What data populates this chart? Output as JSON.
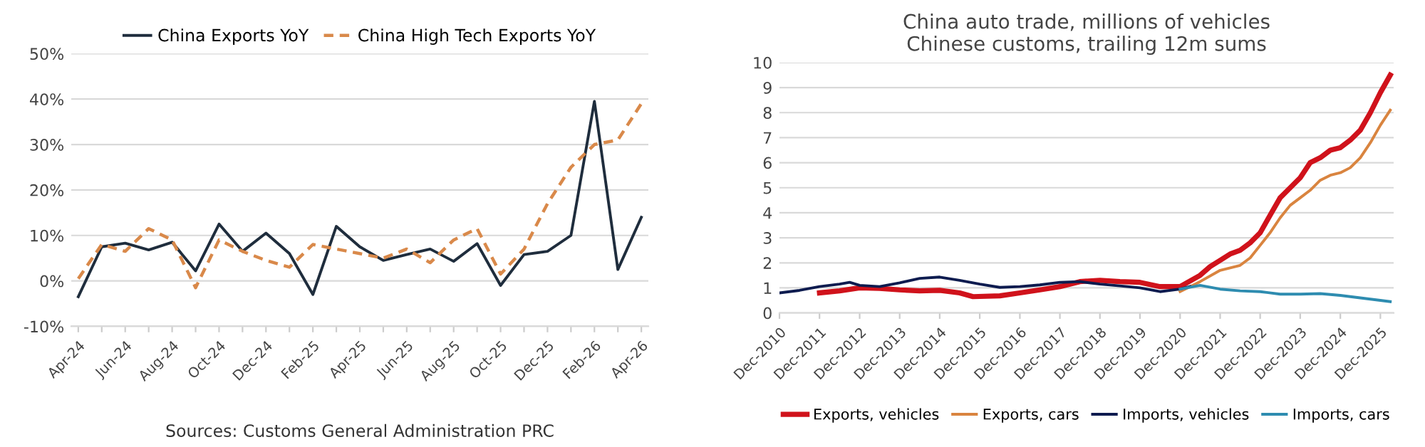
{
  "chart_data": [
    {
      "type": "line",
      "categories": [
        "Apr-24",
        null,
        "Jun-24",
        null,
        "Aug-24",
        null,
        "Oct-24",
        null,
        "Dec-24",
        null,
        "Feb-25",
        null,
        "Apr-25",
        null,
        "Jun-25",
        null,
        "Aug-25",
        null,
        "Oct-25",
        null,
        "Dec-25",
        null,
        "Feb-26",
        null,
        "Apr-26"
      ],
      "series": [
        {
          "name": "China Exports YoY",
          "color": "#1f2d3d",
          "line_style": "solid",
          "values": [
            -3.5,
            7.5,
            8.3,
            6.8,
            8.5,
            2.2,
            12.5,
            6.5,
            10.5,
            6,
            -3,
            12,
            7.5,
            4.5,
            5.8,
            7,
            4.3,
            8.2,
            -1,
            5.8,
            6.5,
            10,
            39.5,
            2.5,
            14
          ]
        },
        {
          "name": "China High Tech Exports YoY",
          "color": "#d9894a",
          "line_style": "dashed",
          "values": [
            0.5,
            8,
            6.5,
            11.5,
            9,
            -1.5,
            9,
            6.5,
            4.5,
            3,
            8,
            7,
            6,
            5,
            7,
            4,
            9,
            11.5,
            1.5,
            7,
            17,
            25,
            30,
            31,
            39
          ]
        }
      ],
      "ylim": [
        -10,
        50
      ],
      "yticks": [
        {
          "value": -10,
          "label": "-10%"
        },
        {
          "value": 0,
          "label": "0%"
        },
        {
          "value": 10,
          "label": "10%"
        },
        {
          "value": 20,
          "label": "20%"
        },
        {
          "value": 30,
          "label": "30%"
        },
        {
          "value": 40,
          "label": "40%"
        },
        {
          "value": 50,
          "label": "50%"
        }
      ],
      "grid": "y",
      "legend": "top",
      "marker": "none",
      "annotations": [
        "Sources: Customs General Administration PRC"
      ]
    },
    {
      "type": "line",
      "title": "China auto trade, millions of vehicles\nChinese customs, trailing 12m sums",
      "series": [
        {
          "name": "Exports, vehicles",
          "color": "#d0121b",
          "x": [
            "2011-12",
            "2012-06",
            "2012-12",
            "2013-06",
            "2013-12",
            "2014-06",
            "2014-12",
            "2015-06",
            "2015-10",
            "2016-06",
            "2016-12",
            "2017-06",
            "2017-12",
            "2018-06",
            "2018-12",
            "2019-06",
            "2019-12",
            "2020-06",
            "2020-12",
            "2021-06",
            "2021-09",
            "2021-12",
            "2022-03",
            "2022-06",
            "2022-09",
            "2022-12",
            "2023-03",
            "2023-06",
            "2023-09",
            "2023-12",
            "2024-03",
            "2024-06",
            "2024-09",
            "2024-12",
            "2025-03",
            "2025-06",
            "2025-09",
            "2025-12",
            "2026-03"
          ],
          "values": [
            0.8,
            0.88,
            1.0,
            0.98,
            0.92,
            0.88,
            0.9,
            0.8,
            0.65,
            0.68,
            0.8,
            0.92,
            1.05,
            1.25,
            1.3,
            1.25,
            1.22,
            1.05,
            1.05,
            1.5,
            1.85,
            2.1,
            2.35,
            2.5,
            2.8,
            3.2,
            3.9,
            4.6,
            5.0,
            5.4,
            6.0,
            6.2,
            6.5,
            6.6,
            6.9,
            7.3,
            8.0,
            8.8,
            9.5
          ]
        },
        {
          "name": "Exports, cars",
          "color": "#d9843f",
          "x": [
            "2020-12",
            "2021-06",
            "2021-12",
            "2022-06",
            "2022-09",
            "2022-12",
            "2023-03",
            "2023-06",
            "2023-09",
            "2023-12",
            "2024-03",
            "2024-06",
            "2024-09",
            "2024-12",
            "2025-03",
            "2025-06",
            "2025-09",
            "2025-12",
            "2026-03"
          ],
          "values": [
            0.85,
            1.25,
            1.7,
            1.9,
            2.2,
            2.7,
            3.2,
            3.8,
            4.3,
            4.6,
            4.9,
            5.3,
            5.5,
            5.6,
            5.8,
            6.2,
            6.8,
            7.5,
            8.1
          ]
        },
        {
          "name": "Imports, vehicles",
          "color": "#0d1b4f",
          "x": [
            "2010-12",
            "2011-06",
            "2011-12",
            "2012-06",
            "2012-09",
            "2012-12",
            "2013-06",
            "2013-12",
            "2014-06",
            "2014-12",
            "2015-06",
            "2015-12",
            "2016-06",
            "2016-12",
            "2017-06",
            "2017-12",
            "2018-06",
            "2018-12",
            "2019-06",
            "2019-12",
            "2020-06",
            "2020-12",
            "2021-03"
          ],
          "values": [
            0.8,
            0.9,
            1.05,
            1.15,
            1.22,
            1.1,
            1.05,
            1.2,
            1.38,
            1.43,
            1.3,
            1.15,
            1.02,
            1.05,
            1.12,
            1.22,
            1.25,
            1.15,
            1.08,
            1.0,
            0.85,
            0.95,
            1.05
          ]
        },
        {
          "name": "Imports, cars",
          "color": "#2e8cb0",
          "x": [
            "2020-12",
            "2021-06",
            "2021-12",
            "2022-06",
            "2022-12",
            "2023-06",
            "2023-12",
            "2024-06",
            "2024-12",
            "2025-06",
            "2025-12",
            "2026-03"
          ],
          "values": [
            0.95,
            1.1,
            0.95,
            0.88,
            0.85,
            0.75,
            0.75,
            0.77,
            0.7,
            0.6,
            0.5,
            0.45
          ]
        }
      ],
      "xlim": [
        "2010-12",
        "2026-04"
      ],
      "xticks": [
        {
          "value": "2010-12",
          "label": "Dec-2010"
        },
        {
          "value": "2011-12",
          "label": "Dec-2011"
        },
        {
          "value": "2012-12",
          "label": "Dec-2012"
        },
        {
          "value": "2013-12",
          "label": "Dec-2013"
        },
        {
          "value": "2014-12",
          "label": "Dec-2014"
        },
        {
          "value": "2015-12",
          "label": "Dec-2015"
        },
        {
          "value": "2016-12",
          "label": "Dec-2016"
        },
        {
          "value": "2017-12",
          "label": "Dec-2017"
        },
        {
          "value": "2018-12",
          "label": "Dec-2018"
        },
        {
          "value": "2019-12",
          "label": "Dec-2019"
        },
        {
          "value": "2020-12",
          "label": "Dec-2020"
        },
        {
          "value": "2021-12",
          "label": "Dec-2021"
        },
        {
          "value": "2022-12",
          "label": "Dec-2022"
        },
        {
          "value": "2023-12",
          "label": "Dec-2023"
        },
        {
          "value": "2024-12",
          "label": "Dec-2024"
        },
        {
          "value": "2025-12",
          "label": "Dec-2025"
        }
      ],
      "ylim": [
        0,
        10
      ],
      "yticks": [
        0,
        1,
        2,
        3,
        4,
        5,
        6,
        7,
        8,
        9,
        10
      ],
      "grid": "y",
      "legend": "bottom",
      "marker": "none"
    }
  ]
}
